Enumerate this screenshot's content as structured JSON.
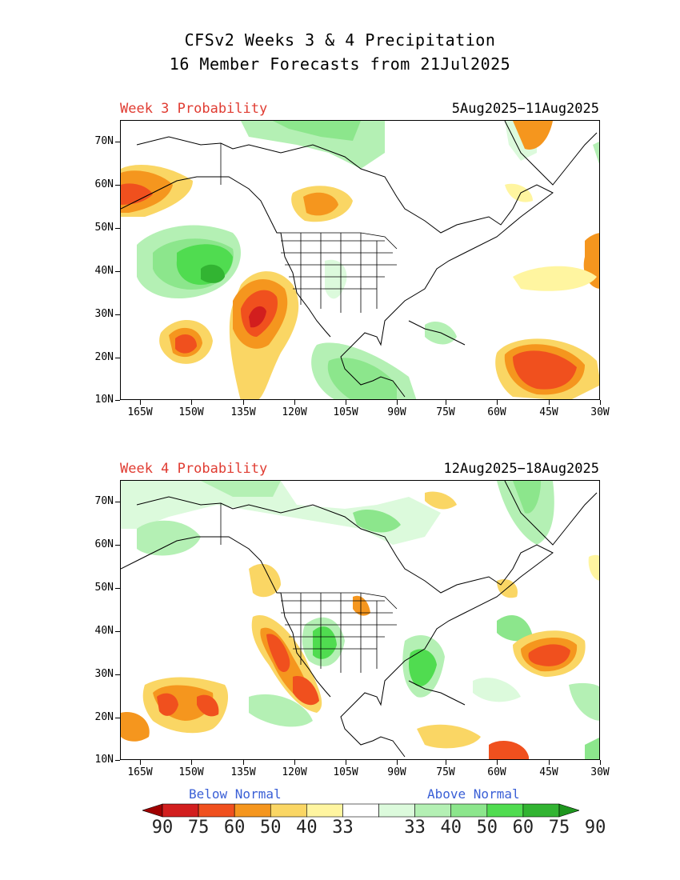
{
  "title_line1": "CFSv2 Weeks 3 & 4 Precipitation",
  "title_line2": "16 Member Forecasts from 21Jul2025",
  "panels": [
    {
      "label": "Week 3 Probability",
      "dates": "5Aug2025−11Aug2025"
    },
    {
      "label": "Week 4 Probability",
      "dates": "12Aug2025−18Aug2025"
    }
  ],
  "lat_labels": [
    "70N",
    "60N",
    "50N",
    "40N",
    "30N",
    "20N",
    "10N"
  ],
  "lon_labels": [
    "165W",
    "150W",
    "135W",
    "120W",
    "105W",
    "90W",
    "75W",
    "60W",
    "45W",
    "30W"
  ],
  "legend": {
    "below_label": "Below Normal",
    "above_label": "Above Normal",
    "values": [
      "90",
      "75",
      "60",
      "50",
      "40",
      "33",
      "33",
      "40",
      "50",
      "60",
      "75",
      "90"
    ],
    "colors": [
      "#a00000",
      "#d21e1e",
      "#f0501e",
      "#f5961e",
      "#fad664",
      "#fff5a0",
      "#ffffff",
      "#dcfadc",
      "#b4f0b4",
      "#8ce68c",
      "#50dc50",
      "#32b432",
      "#1e961e"
    ]
  }
}
